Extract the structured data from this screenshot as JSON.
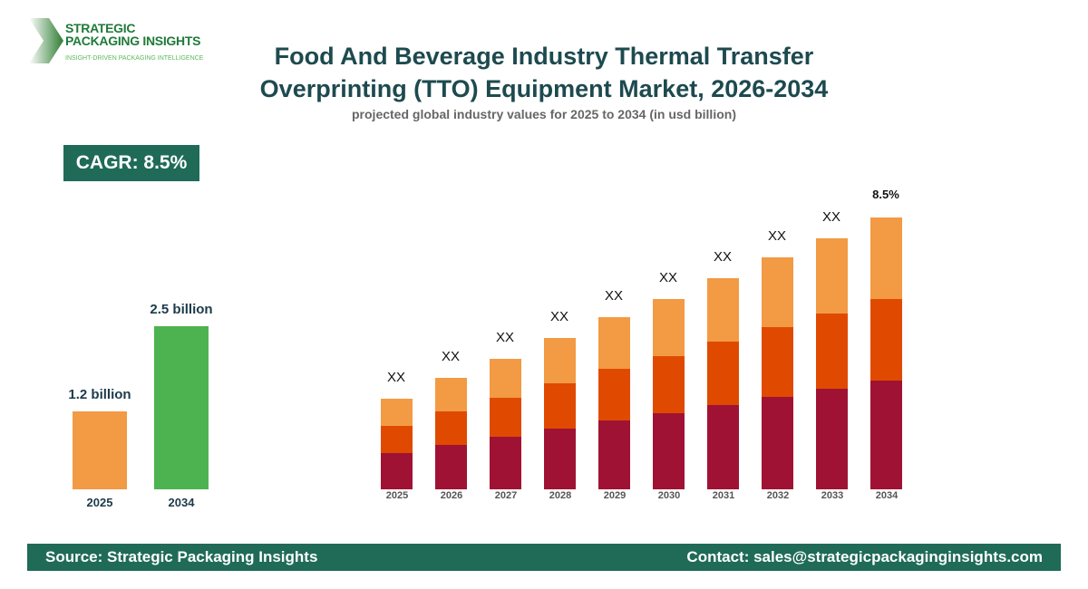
{
  "brand": {
    "name_line1": "STRATEGIC",
    "name_line2": "PACKAGING INSIGHTS",
    "tagline": "INSIGHT-DRIVEN PACKAGING INTELLIGENCE"
  },
  "title": "Food And Beverage Industry Thermal Transfer Overprinting (TTO) Equipment Market, 2026-2034",
  "subtitle": "projected global industry values for 2025 to 2034 (in usd billion)",
  "cagr_badge": "CAGR: 8.5%",
  "footer": {
    "source": "Source: Strategic Packaging Insights",
    "contact": "Contact: sales@strategicpackaginginsights.com"
  },
  "chart_data": [
    {
      "type": "bar",
      "categories": [
        "2025",
        "2034"
      ],
      "values": [
        1.2,
        2.5
      ],
      "labels": [
        "1.2 billion",
        "2.5 billion"
      ],
      "colors": [
        "#f39a45",
        "#4db350"
      ]
    },
    {
      "type": "bar",
      "stacked": true,
      "categories": [
        "2025",
        "2026",
        "2027",
        "2028",
        "2029",
        "2030",
        "2031",
        "2032",
        "2033",
        "2034"
      ],
      "series": [
        {
          "color": "#a01233",
          "values": [
            40,
            49,
            58,
            67,
            76,
            84,
            93,
            102,
            111,
            120
          ]
        },
        {
          "color": "#e04a00",
          "values": [
            30,
            37,
            43,
            50,
            57,
            63,
            70,
            77,
            83,
            90
          ]
        },
        {
          "color": "#f39a45",
          "values": [
            30,
            37,
            43,
            50,
            57,
            63,
            70,
            77,
            83,
            90
          ]
        }
      ],
      "data_labels": [
        "XX",
        "XX",
        "XX",
        "XX",
        "XX",
        "XX",
        "XX",
        "XX",
        "XX",
        "8.5%"
      ],
      "axes_visible": false,
      "grid": false
    }
  ]
}
